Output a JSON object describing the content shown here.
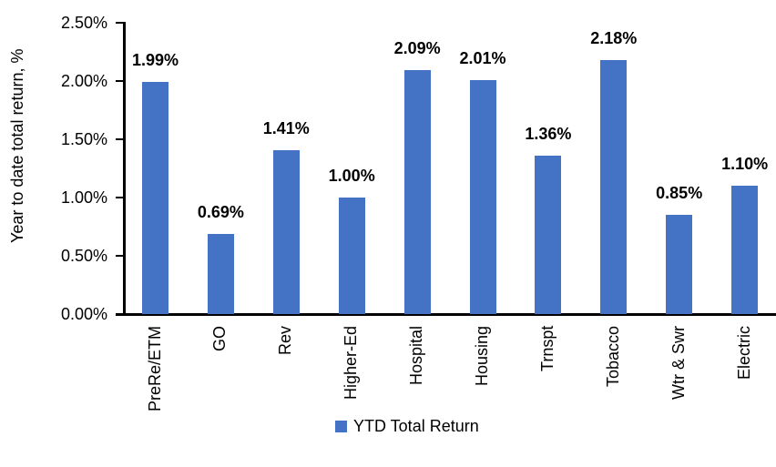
{
  "chart_data": {
    "type": "bar",
    "title": "",
    "xlabel": "",
    "ylabel": "Year to date total return, %",
    "categories": [
      "PreRe/ETM",
      "GO",
      "Rev",
      "Higher-Ed",
      "Hospital",
      "Housing",
      "Trnspt",
      "Tobacco",
      "Wtr & Swr",
      "Electric"
    ],
    "values": [
      1.99,
      0.69,
      1.41,
      1.0,
      2.09,
      2.01,
      1.36,
      2.18,
      0.85,
      1.1
    ],
    "value_labels": [
      "1.99%",
      "0.69%",
      "1.41%",
      "1.00%",
      "2.09%",
      "2.01%",
      "1.36%",
      "2.18%",
      "0.85%",
      "1.10%"
    ],
    "ylim": [
      0,
      2.5
    ],
    "ytick_values": [
      0,
      0.5,
      1.0,
      1.5,
      2.0,
      2.5
    ],
    "ytick_labels": [
      "0.00%",
      "0.50%",
      "1.00%",
      "1.50%",
      "2.00%",
      "2.50%"
    ],
    "grid": false,
    "legend": {
      "position": "bottom",
      "entries": [
        {
          "label": "YTD Total Return",
          "color": "#4472C4"
        }
      ]
    },
    "colors": {
      "bar": "#4472C4",
      "axis": "#000000",
      "text": "#000000",
      "background": "#FFFFFF"
    }
  }
}
